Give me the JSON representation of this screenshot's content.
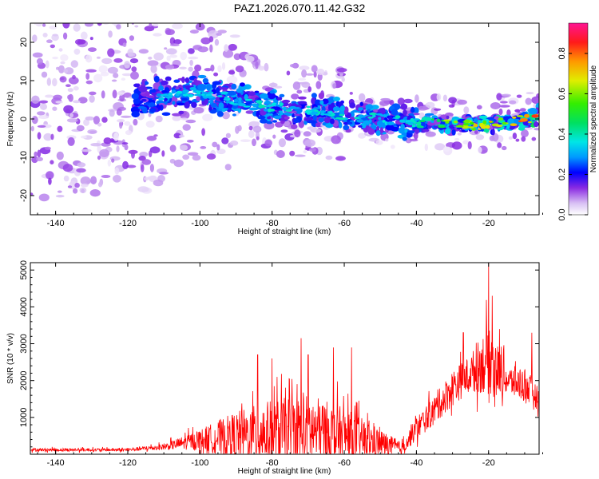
{
  "title": "PAZ1.2026.070.11.42.G32",
  "chart_data": [
    {
      "type": "heatmap",
      "xlabel": "Height of straight line (km)",
      "ylabel": "Frequency (Hz)",
      "xlim": [
        -147,
        -6
      ],
      "ylim": [
        -25,
        25
      ],
      "xticks": [
        -140,
        -120,
        -100,
        -80,
        -60,
        -40,
        -20
      ],
      "yticks": [
        -20,
        -10,
        0,
        10,
        20
      ],
      "colorbar": {
        "label": "Normalized spectral amplitude",
        "range": [
          0,
          0.95
        ],
        "ticks": [
          0.0,
          0.2,
          0.4,
          0.6,
          0.8
        ]
      },
      "ridge": [
        {
          "x": -145,
          "f": 4,
          "a": 0.25
        },
        {
          "x": -120,
          "f": 5,
          "a": 0.3
        },
        {
          "x": -110,
          "f": 6,
          "a": 0.35
        },
        {
          "x": -100,
          "f": 7,
          "a": 0.4
        },
        {
          "x": -90,
          "f": 5,
          "a": 0.4
        },
        {
          "x": -80,
          "f": 3,
          "a": 0.4
        },
        {
          "x": -70,
          "f": 2,
          "a": 0.4
        },
        {
          "x": -60,
          "f": 1,
          "a": 0.4
        },
        {
          "x": -50,
          "f": 0,
          "a": 0.4
        },
        {
          "x": -40,
          "f": -1,
          "a": 0.45
        },
        {
          "x": -35,
          "f": -1,
          "a": 0.55
        },
        {
          "x": -30,
          "f": -1.5,
          "a": 0.7
        },
        {
          "x": -25,
          "f": -1.5,
          "a": 0.7
        },
        {
          "x": -20,
          "f": -1.5,
          "a": 0.8
        },
        {
          "x": -15,
          "f": -0.5,
          "a": 0.75
        },
        {
          "x": -10,
          "f": 0,
          "a": 0.85
        },
        {
          "x": -6,
          "f": 1,
          "a": 0.9
        }
      ]
    },
    {
      "type": "line",
      "xlabel": "Height of straight line (km)",
      "ylabel": "SNR (10 * v/v)",
      "xlim": [
        -147,
        -6
      ],
      "ylim": [
        0,
        5200
      ],
      "xticks": [
        -140,
        -120,
        -100,
        -80,
        -60,
        -40,
        -20
      ],
      "yticks": [
        1000,
        2000,
        3000,
        4000,
        5000
      ],
      "color": "#ff0000",
      "envelope": [
        {
          "x": -147,
          "base": 120,
          "amp": 80
        },
        {
          "x": -120,
          "base": 120,
          "amp": 80
        },
        {
          "x": -110,
          "base": 200,
          "amp": 150
        },
        {
          "x": -100,
          "base": 400,
          "amp": 500
        },
        {
          "x": -90,
          "base": 500,
          "amp": 1200
        },
        {
          "x": -80,
          "base": 600,
          "amp": 1600
        },
        {
          "x": -70,
          "base": 650,
          "amp": 1800
        },
        {
          "x": -60,
          "base": 500,
          "amp": 1400
        },
        {
          "x": -50,
          "base": 300,
          "amp": 700
        },
        {
          "x": -44,
          "base": 150,
          "amp": 300
        },
        {
          "x": -40,
          "base": 700,
          "amp": 600
        },
        {
          "x": -35,
          "base": 1200,
          "amp": 700
        },
        {
          "x": -30,
          "base": 1800,
          "amp": 900
        },
        {
          "x": -25,
          "base": 2200,
          "amp": 900
        },
        {
          "x": -20,
          "base": 2600,
          "amp": 1800
        },
        {
          "x": -15,
          "base": 2000,
          "amp": 700
        },
        {
          "x": -10,
          "base": 1900,
          "amp": 900
        },
        {
          "x": -6,
          "base": 1500,
          "amp": 500
        }
      ],
      "peaks": [
        {
          "x": -20,
          "y": 5200
        },
        {
          "x": -19,
          "y": 4300
        },
        {
          "x": -17,
          "y": 3400
        },
        {
          "x": -22,
          "y": 2700
        },
        {
          "x": -27,
          "y": 3300
        },
        {
          "x": -8,
          "y": 3300
        },
        {
          "x": -72,
          "y": 3150
        },
        {
          "x": -70,
          "y": 2700
        },
        {
          "x": -63,
          "y": 2900
        },
        {
          "x": -58,
          "y": 2900
        },
        {
          "x": -84,
          "y": 2700
        },
        {
          "x": -80,
          "y": 2600
        }
      ]
    }
  ]
}
